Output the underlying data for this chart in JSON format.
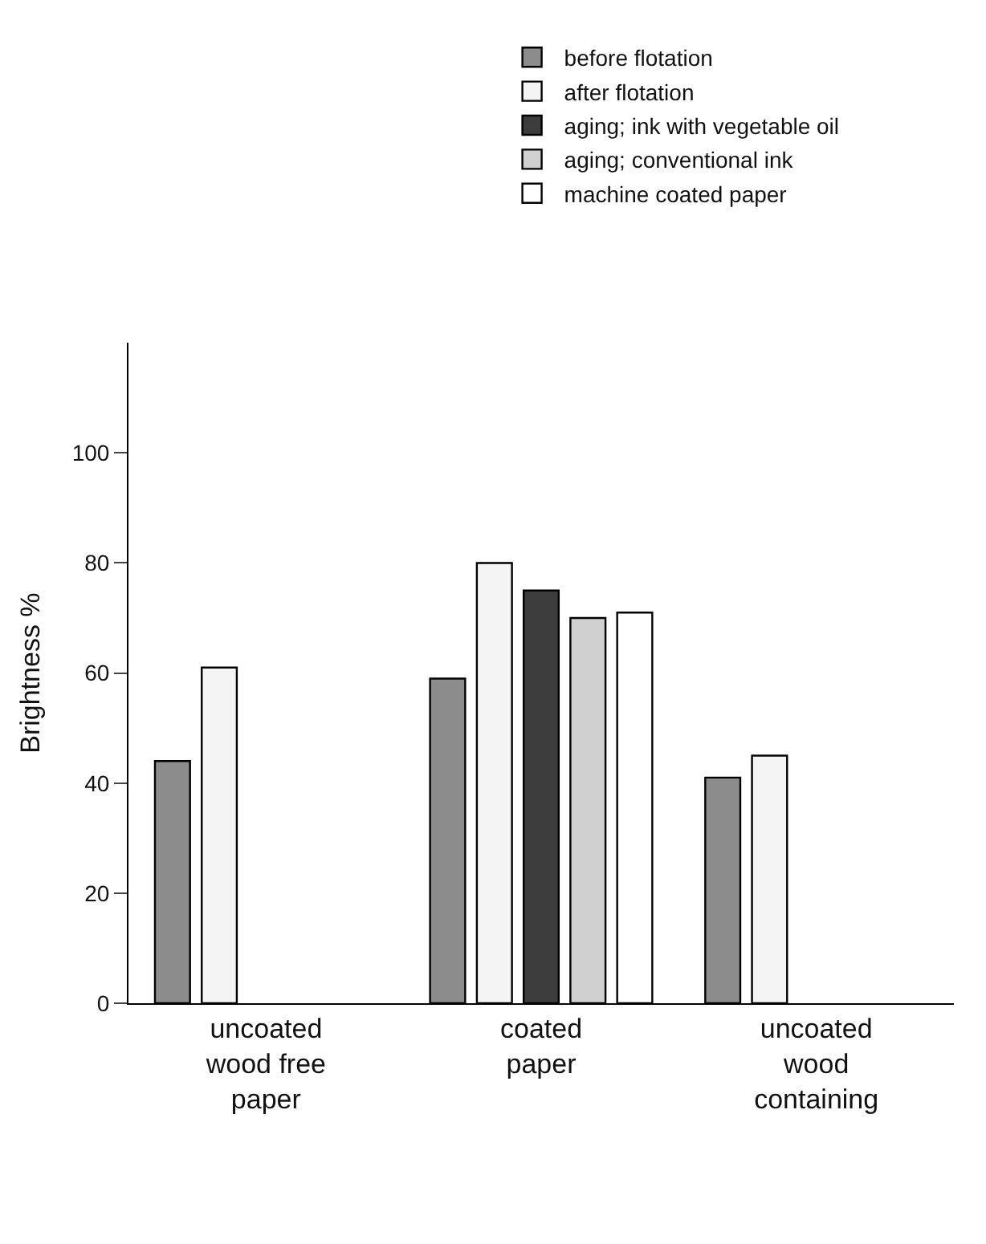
{
  "chart_data": {
    "type": "bar",
    "ylabel": "Brightness %",
    "categories": [
      "uncoated wood free paper",
      "coated paper",
      "uncoated wood containing"
    ],
    "series": [
      {
        "name": "before flotation",
        "color": "#8c8c8c",
        "values": [
          44,
          59,
          41
        ]
      },
      {
        "name": "after flotation",
        "color": "#f4f4f4",
        "values": [
          61,
          80,
          45
        ]
      },
      {
        "name": "aging; ink with vegetable oil",
        "color": "#3c3c3c",
        "values": [
          null,
          75,
          null
        ]
      },
      {
        "name": "aging; conventional ink",
        "color": "#d0d0d0",
        "values": [
          null,
          70,
          null
        ]
      },
      {
        "name": "machine coated paper",
        "color": "#ffffff",
        "values": [
          null,
          71,
          null
        ]
      }
    ],
    "ylim": [
      0,
      120
    ],
    "yticks": [
      0,
      20,
      40,
      60,
      80,
      100
    ],
    "legend": "top right"
  }
}
